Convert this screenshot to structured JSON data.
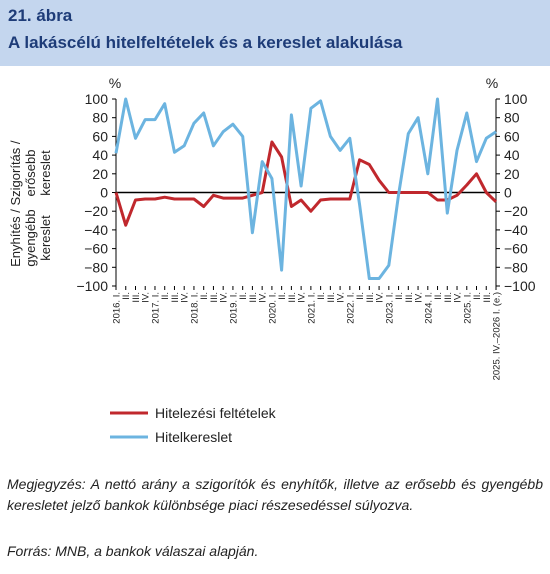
{
  "figure": {
    "number": "21. ábra",
    "title": "A lakáscélú hitelfeltételek és a kereslet alakulása"
  },
  "note": "Megjegyzés: A nettó arány a szigorítók és enyhítők, illetve az erősebb és gyengébb keresletet jelző bankok különbsége piaci részesedéssel súlyozva.",
  "source": "Forrás: MNB, a bankok válaszai alapján.",
  "colors": {
    "credit_conditions": "#c0282d",
    "credit_demand": "#6cb4e0",
    "header_bg": "#c4d6ee",
    "title_text": "#1e3c78"
  },
  "chart_data": {
    "type": "line",
    "unit_left": "%",
    "unit_right": "%",
    "ylim": [
      -100,
      100
    ],
    "yticks": [
      -100,
      -80,
      -60,
      -40,
      -20,
      0,
      20,
      40,
      60,
      80,
      100
    ],
    "upper_axis_label": "Szigorítás / erősebb kereslet",
    "lower_axis_label": "Enyhítés / gyengébb kereslet",
    "x_labels": [
      "2016. I.",
      "II.",
      "III.",
      "IV.",
      "2017. I.",
      "II.",
      "III.",
      "IV.",
      "2018. I.",
      "II.",
      "III.",
      "IV.",
      "2019. I.",
      "II.",
      "III.",
      "IV.",
      "2020. I.",
      "II.",
      "III.",
      "IV.",
      "2021. I.",
      "II.",
      "III.",
      "IV.",
      "2022. I.",
      "II.",
      "III.",
      "IV.",
      "2023. I.",
      "II.",
      "III.",
      "IV.",
      "2024. I.",
      "II.",
      "III.",
      "IV.",
      "2025. I.",
      "II.",
      "III.",
      "2025. IV.–2026 I. (e.)"
    ],
    "series": [
      {
        "name": "Hitelezési feltételek",
        "color": "#c0282d",
        "values": [
          0,
          -35,
          -8,
          -7,
          -7,
          -5,
          -7,
          -7,
          -7,
          -15,
          -3,
          -6,
          -6,
          -6,
          -3,
          0,
          54,
          38,
          -15,
          -8,
          -20,
          -8,
          -7,
          -7,
          -7,
          35,
          30,
          13,
          0,
          0,
          0,
          0,
          0,
          -8,
          -8,
          -3,
          8,
          20,
          0,
          -10
        ]
      },
      {
        "name": "Hitelkereslet",
        "color": "#6cb4e0",
        "values": [
          42,
          100,
          58,
          78,
          78,
          95,
          43,
          50,
          74,
          85,
          50,
          65,
          73,
          60,
          -43,
          33,
          15,
          -83,
          83,
          7,
          90,
          98,
          60,
          45,
          58,
          -13,
          -92,
          -92,
          -78,
          -2,
          63,
          80,
          20,
          100,
          -22,
          45,
          85,
          33,
          58,
          65
        ]
      }
    ]
  }
}
